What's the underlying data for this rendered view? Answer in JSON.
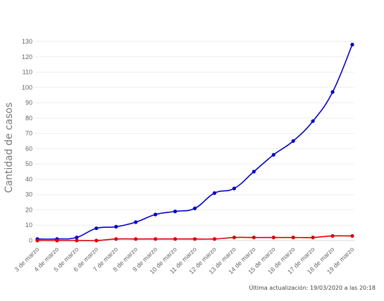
{
  "chart_data": {
    "type": "line",
    "ylabel": "Cantidad de casos",
    "xlabel": "",
    "ylim": [
      0,
      130
    ],
    "yticks": [
      0,
      10,
      20,
      30,
      40,
      50,
      60,
      70,
      80,
      90,
      100,
      110,
      120,
      130
    ],
    "grid": true,
    "categories": [
      "3 de marzo",
      "4 de marzo",
      "5 de marzo",
      "6 de marzo",
      "7 de marzo",
      "8 de marzo",
      "9 de marzo",
      "10 de marzo",
      "11 de marzo",
      "12 de marzo",
      "13 de marzo",
      "14 de marzo",
      "15 de marzo",
      "16 de marzo",
      "17 de marzo",
      "18 de marzo",
      "19 de marzo"
    ],
    "series": [
      {
        "color": "#0000cc",
        "values": [
          1,
          1,
          2,
          8,
          9,
          12,
          17,
          19,
          21,
          31,
          34,
          45,
          56,
          65,
          78,
          97,
          128
        ]
      },
      {
        "color": "#dd0000",
        "values": [
          0,
          0,
          0,
          0,
          1,
          1,
          1,
          1,
          1,
          1,
          2,
          2,
          2,
          2,
          2,
          3,
          3
        ]
      }
    ]
  },
  "footer": "Última actualización: 19/03/2020 a las 20:18"
}
